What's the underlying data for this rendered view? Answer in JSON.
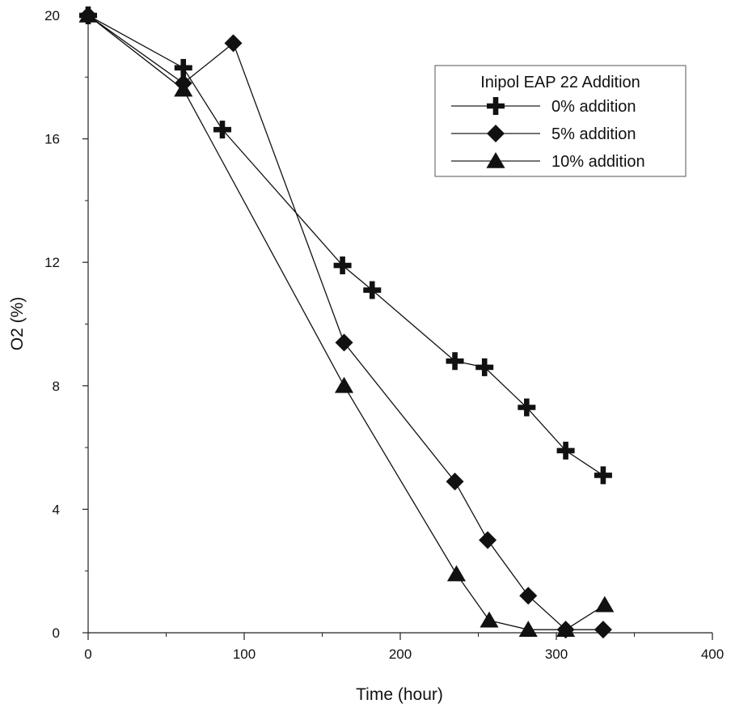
{
  "chart_data": {
    "type": "line",
    "title": "",
    "xlabel": "Time (hour)",
    "ylabel": "O2 (%)",
    "xlim": [
      0,
      400
    ],
    "ylim": [
      0,
      20
    ],
    "xticks": [
      0,
      100,
      200,
      300,
      400
    ],
    "yticks": [
      0,
      4,
      8,
      12,
      16,
      20
    ],
    "grid": false,
    "legend": {
      "title": "Inipol EAP 22 Addition",
      "placement": "top-right"
    },
    "series": [
      {
        "name": "0% addition",
        "marker": "plus",
        "color": "#111111",
        "x": [
          0,
          61,
          86,
          163,
          182,
          235,
          254,
          281,
          306,
          330
        ],
        "y": [
          20,
          18.3,
          16.3,
          11.9,
          11.1,
          8.8,
          8.6,
          7.3,
          5.9,
          5.1
        ]
      },
      {
        "name": "5% addition",
        "marker": "diamond",
        "color": "#111111",
        "x": [
          0,
          61,
          93,
          164,
          235,
          256,
          282,
          306,
          330
        ],
        "y": [
          20,
          17.8,
          19.1,
          9.4,
          4.9,
          3.0,
          1.2,
          0.1,
          0.1
        ]
      },
      {
        "name": "10% addition",
        "marker": "triangle",
        "color": "#111111",
        "x": [
          0,
          61,
          164,
          236,
          257,
          282,
          306,
          331
        ],
        "y": [
          20,
          17.6,
          8.0,
          1.9,
          0.4,
          0.1,
          0.1,
          0.9
        ]
      }
    ]
  }
}
